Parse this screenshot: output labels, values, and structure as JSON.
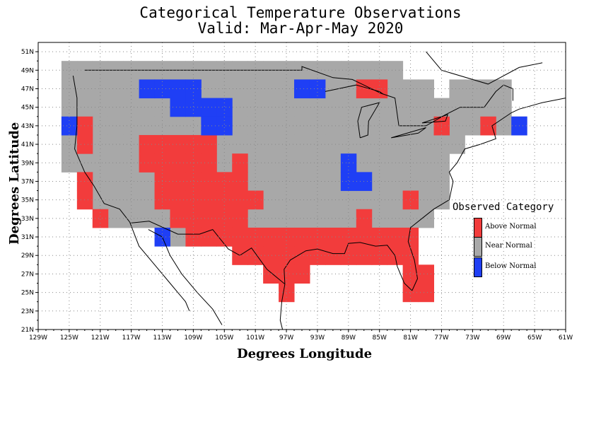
{
  "title_line1": "Categorical Temperature Observations",
  "title_line2": "Valid: Mar-Apr-May 2020",
  "xlabel": "Degrees Longitude",
  "ylabel": "Degrees Latitude",
  "legend": {
    "title": "Observed Category",
    "items": [
      {
        "label": "Above Normal",
        "color": "#f23c3c"
      },
      {
        "label": "Near Normal",
        "color": "#a8a8a8"
      },
      {
        "label": "Below Normal",
        "color": "#1f3ff5"
      }
    ]
  },
  "x_ticks": [
    "129W",
    "125W",
    "121W",
    "117W",
    "113W",
    "109W",
    "105W",
    "101W",
    "97W",
    "93W",
    "89W",
    "85W",
    "81W",
    "77W",
    "73W",
    "69W",
    "65W",
    "61W"
  ],
  "y_ticks": [
    "21N",
    "23N",
    "25N",
    "27N",
    "29N",
    "31N",
    "33N",
    "35N",
    "37N",
    "39N",
    "41N",
    "43N",
    "45N",
    "47N",
    "49N",
    "51N"
  ],
  "chart_data": {
    "type": "heatmap",
    "title": "Categorical Temperature Observations\nValid: Mar-Apr-May 2020",
    "xlabel": "Degrees Longitude",
    "ylabel": "Degrees Latitude",
    "xlim": [
      -129,
      -61
    ],
    "ylim": [
      21,
      52
    ],
    "grid": true,
    "legend_position": "right",
    "cell_size_deg": 2,
    "categories": [
      "Above Normal",
      "Near Normal",
      "Below Normal"
    ],
    "above_normal": [
      [
        -123,
        43
      ],
      [
        -123,
        41
      ],
      [
        -123,
        37
      ],
      [
        -123,
        35
      ],
      [
        -121,
        33
      ],
      [
        -115,
        41
      ],
      [
        -115,
        39
      ],
      [
        -113,
        41
      ],
      [
        -113,
        39
      ],
      [
        -113,
        37
      ],
      [
        -113,
        35
      ],
      [
        -111,
        41
      ],
      [
        -111,
        39
      ],
      [
        -111,
        37
      ],
      [
        -111,
        35
      ],
      [
        -111,
        33
      ],
      [
        -109,
        41
      ],
      [
        -109,
        39
      ],
      [
        -109,
        37
      ],
      [
        -109,
        35
      ],
      [
        -109,
        33
      ],
      [
        -109,
        31
      ],
      [
        -107,
        41
      ],
      [
        -107,
        39
      ],
      [
        -107,
        37
      ],
      [
        -107,
        35
      ],
      [
        -107,
        33
      ],
      [
        -107,
        31
      ],
      [
        -105,
        37
      ],
      [
        -105,
        35
      ],
      [
        -105,
        33
      ],
      [
        -105,
        31
      ],
      [
        -103,
        39
      ],
      [
        -103,
        37
      ],
      [
        -103,
        35
      ],
      [
        -103,
        33
      ],
      [
        -103,
        31
      ],
      [
        -103,
        29
      ],
      [
        -101,
        35
      ],
      [
        -101,
        31
      ],
      [
        -101,
        29
      ],
      [
        -99,
        31
      ],
      [
        -99,
        29
      ],
      [
        -99,
        27
      ],
      [
        -97,
        31
      ],
      [
        -97,
        29
      ],
      [
        -97,
        27
      ],
      [
        -97,
        25
      ],
      [
        -95,
        31
      ],
      [
        -95,
        29
      ],
      [
        -95,
        27
      ],
      [
        -93,
        31
      ],
      [
        -93,
        29
      ],
      [
        -91,
        31
      ],
      [
        -91,
        29
      ],
      [
        -89,
        31
      ],
      [
        -89,
        29
      ],
      [
        -87,
        33
      ],
      [
        -87,
        31
      ],
      [
        -87,
        29
      ],
      [
        -85,
        31
      ],
      [
        -85,
        29
      ],
      [
        -83,
        31
      ],
      [
        -83,
        29
      ],
      [
        -81,
        35
      ],
      [
        -81,
        31
      ],
      [
        -81,
        29
      ],
      [
        -81,
        27
      ],
      [
        -81,
        25
      ],
      [
        -79,
        27
      ],
      [
        -79,
        25
      ],
      [
        -77,
        43
      ],
      [
        -71,
        43
      ],
      [
        -87,
        47
      ],
      [
        -85,
        47
      ]
    ],
    "below_normal": [
      [
        -125,
        43
      ],
      [
        -115,
        47
      ],
      [
        -113,
        47
      ],
      [
        -111,
        47
      ],
      [
        -109,
        47
      ],
      [
        -111,
        45
      ],
      [
        -109,
        45
      ],
      [
        -107,
        45
      ],
      [
        -105,
        45
      ],
      [
        -107,
        43
      ],
      [
        -105,
        43
      ],
      [
        -95,
        47
      ],
      [
        -93,
        47
      ],
      [
        -89,
        39
      ],
      [
        -89,
        37
      ],
      [
        -87,
        37
      ],
      [
        -113,
        31
      ],
      [
        -67,
        43
      ]
    ]
  }
}
